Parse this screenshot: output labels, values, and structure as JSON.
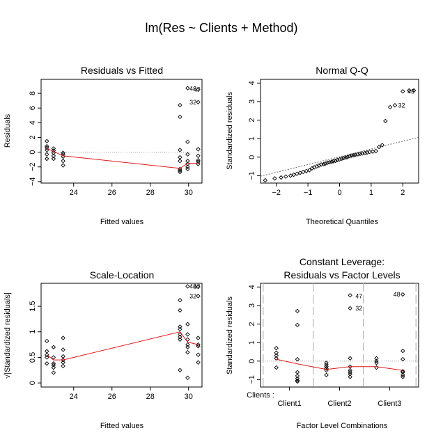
{
  "title": "lm(Res ~ Clients + Method)",
  "chart_data": [
    {
      "type": "scatter",
      "title": "Residuals vs Fitted",
      "xlabel": "Fitted values",
      "ylabel": "Residuals",
      "xlim": [
        22.3,
        30.7
      ],
      "ylim": [
        -4.2,
        9.9
      ],
      "xticks": [
        24,
        26,
        28,
        30
      ],
      "yticks": [
        -4,
        -2,
        0,
        2,
        4,
        6,
        8
      ],
      "reference_y": 0,
      "points": [
        [
          22.6,
          1.5
        ],
        [
          22.6,
          0.8
        ],
        [
          22.6,
          0.6
        ],
        [
          22.6,
          0.3
        ],
        [
          22.6,
          -0.3
        ],
        [
          22.6,
          -0.9
        ],
        [
          22.95,
          0.5
        ],
        [
          22.95,
          0.2
        ],
        [
          22.95,
          -0.1
        ],
        [
          22.95,
          -0.5
        ],
        [
          22.95,
          -0.9
        ],
        [
          23.45,
          -0.1
        ],
        [
          23.45,
          -0.3
        ],
        [
          23.45,
          -0.6
        ],
        [
          23.45,
          -1.2
        ],
        [
          23.45,
          -1.8
        ],
        [
          29.55,
          6.4
        ],
        [
          29.55,
          4.8
        ],
        [
          29.55,
          0.3
        ],
        [
          29.55,
          -0.7
        ],
        [
          29.55,
          -1.2
        ],
        [
          29.55,
          -2.3
        ],
        [
          29.55,
          -2.5
        ],
        [
          29.55,
          -2.7
        ],
        [
          29.95,
          8.7
        ],
        [
          29.95,
          1.4
        ],
        [
          29.95,
          -0.3
        ],
        [
          29.95,
          -1.2
        ],
        [
          29.95,
          -1.6
        ],
        [
          29.95,
          -2.0
        ],
        [
          29.95,
          -2.3
        ],
        [
          30.5,
          8.5
        ],
        [
          30.5,
          6.8
        ],
        [
          30.5,
          0.4
        ],
        [
          30.5,
          -0.5
        ],
        [
          30.5,
          -1.1
        ],
        [
          30.5,
          -1.3
        ],
        [
          30.5,
          -1.6
        ]
      ],
      "smoother": {
        "x": [
          22.6,
          22.95,
          23.45,
          29.55,
          29.95,
          30.5
        ],
        "y": [
          0.5,
          0.1,
          -0.5,
          -2.2,
          -1.5,
          -1.5
        ]
      },
      "point_labels": [
        {
          "text": "48",
          "x": 30.05,
          "y": 8.6
        },
        {
          "text": "47",
          "x": 30.25,
          "y": 8.5
        },
        {
          "text": "32",
          "x": 30.05,
          "y": 6.8
        }
      ]
    },
    {
      "type": "scatter",
      "title": "Normal Q-Q",
      "xlabel": "Theoretical Quantiles",
      "ylabel": "Standardized residuals",
      "xlim": [
        -2.5,
        2.5
      ],
      "ylim": [
        -1.4,
        4.2
      ],
      "xticks": [
        -2,
        -1,
        0,
        1,
        2
      ],
      "yticks": [
        -1,
        0,
        1,
        2,
        3,
        4
      ],
      "reference_line": {
        "intercept": 0.02,
        "slope": 0.42
      },
      "points": [
        [
          -2.35,
          -1.25
        ],
        [
          -2.05,
          -1.15
        ],
        [
          -1.85,
          -1.1
        ],
        [
          -1.7,
          -1.05
        ],
        [
          -1.55,
          -1.0
        ],
        [
          -1.45,
          -0.95
        ],
        [
          -1.35,
          -0.9
        ],
        [
          -1.25,
          -0.85
        ],
        [
          -1.15,
          -0.8
        ],
        [
          -1.05,
          -0.75
        ],
        [
          -0.95,
          -0.7
        ],
        [
          -0.87,
          -0.6
        ],
        [
          -0.8,
          -0.55
        ],
        [
          -0.72,
          -0.5
        ],
        [
          -0.65,
          -0.45
        ],
        [
          -0.58,
          -0.4
        ],
        [
          -0.5,
          -0.38
        ],
        [
          -0.45,
          -0.35
        ],
        [
          -0.38,
          -0.3
        ],
        [
          -0.32,
          -0.28
        ],
        [
          -0.25,
          -0.25
        ],
        [
          -0.2,
          -0.22
        ],
        [
          -0.13,
          -0.2
        ],
        [
          -0.07,
          -0.15
        ],
        [
          0.0,
          -0.12
        ],
        [
          0.07,
          -0.08
        ],
        [
          0.13,
          -0.05
        ],
        [
          0.2,
          -0.02
        ],
        [
          0.25,
          0.0
        ],
        [
          0.32,
          0.05
        ],
        [
          0.38,
          0.08
        ],
        [
          0.45,
          0.1
        ],
        [
          0.5,
          0.12
        ],
        [
          0.58,
          0.15
        ],
        [
          0.65,
          0.18
        ],
        [
          0.72,
          0.2
        ],
        [
          0.8,
          0.22
        ],
        [
          0.87,
          0.25
        ],
        [
          0.95,
          0.28
        ],
        [
          1.05,
          0.3
        ],
        [
          1.15,
          0.33
        ],
        [
          1.25,
          0.55
        ],
        [
          1.35,
          0.65
        ],
        [
          1.45,
          1.95
        ],
        [
          1.6,
          2.7
        ],
        [
          1.75,
          2.8
        ],
        [
          2.0,
          3.55
        ],
        [
          2.2,
          3.6
        ],
        [
          2.35,
          3.6
        ]
      ],
      "point_labels": [
        {
          "text": "48",
          "x": 2.15,
          "y": 3.55
        },
        {
          "text": "32",
          "x": 1.85,
          "y": 2.8
        }
      ]
    },
    {
      "type": "scatter",
      "title": "Scale-Location",
      "xlabel": "Fitted values",
      "ylabel": "√|Standardized residuals|",
      "xlim": [
        22.3,
        30.7
      ],
      "ylim": [
        -0.08,
        1.95
      ],
      "xticks": [
        24,
        26,
        28,
        30
      ],
      "yticks": [
        0.0,
        0.5,
        1.0,
        1.5
      ],
      "points": [
        [
          22.6,
          0.82
        ],
        [
          22.6,
          0.62
        ],
        [
          22.6,
          0.55
        ],
        [
          22.6,
          0.5
        ],
        [
          22.6,
          0.38
        ],
        [
          22.95,
          0.7
        ],
        [
          22.95,
          0.5
        ],
        [
          22.95,
          0.38
        ],
        [
          22.95,
          0.35
        ],
        [
          22.95,
          0.3
        ],
        [
          22.95,
          0.2
        ],
        [
          23.45,
          0.88
        ],
        [
          23.45,
          0.65
        ],
        [
          23.45,
          0.52
        ],
        [
          23.45,
          0.45
        ],
        [
          23.45,
          0.4
        ],
        [
          23.45,
          0.33
        ],
        [
          29.55,
          1.62
        ],
        [
          29.55,
          1.42
        ],
        [
          29.55,
          1.1
        ],
        [
          29.55,
          1.05
        ],
        [
          29.55,
          0.95
        ],
        [
          29.55,
          0.9
        ],
        [
          29.55,
          0.85
        ],
        [
          29.55,
          0.25
        ],
        [
          29.95,
          1.89
        ],
        [
          29.95,
          1.15
        ],
        [
          29.95,
          0.95
        ],
        [
          29.95,
          0.85
        ],
        [
          29.95,
          0.75
        ],
        [
          29.95,
          0.7
        ],
        [
          29.95,
          0.6
        ],
        [
          29.95,
          0.1
        ],
        [
          30.5,
          1.88
        ],
        [
          30.5,
          1.7
        ],
        [
          30.5,
          0.88
        ],
        [
          30.5,
          0.75
        ],
        [
          30.5,
          0.72
        ],
        [
          30.5,
          0.55
        ],
        [
          30.5,
          0.4
        ]
      ],
      "smoother": {
        "x": [
          22.6,
          22.95,
          23.45,
          29.55,
          29.95,
          30.5
        ],
        "y": [
          0.55,
          0.45,
          0.45,
          1.0,
          0.8,
          0.75
        ]
      },
      "point_labels": [
        {
          "text": "48",
          "x": 30.05,
          "y": 1.89
        },
        {
          "text": "47",
          "x": 30.25,
          "y": 1.88
        },
        {
          "text": "32",
          "x": 30.05,
          "y": 1.7
        }
      ]
    },
    {
      "type": "scatter",
      "title": "Constant Leverage:",
      "subtitle": "Residuals vs Factor Levels",
      "xlabel": "Factor Level Combinations",
      "ylabel": "Standardized residuals",
      "xlim": [
        0.0,
        3.0
      ],
      "ylim": [
        -1.4,
        4.2
      ],
      "yticks": [
        -1,
        0,
        1,
        2,
        3,
        4
      ],
      "factor_label": "Clients :",
      "categories": [
        "Client1",
        "Client2",
        "Client3"
      ],
      "category_positions": [
        0.55,
        1.5,
        2.45
      ],
      "separators": [
        0.05,
        1.0,
        1.95,
        2.95
      ],
      "reference_y": 0,
      "points": [
        [
          0.3,
          0.7
        ],
        [
          0.3,
          0.45
        ],
        [
          0.3,
          0.3
        ],
        [
          0.3,
          0.15
        ],
        [
          0.3,
          -0.35
        ],
        [
          0.7,
          2.7
        ],
        [
          0.7,
          1.95
        ],
        [
          0.7,
          0.1
        ],
        [
          0.7,
          -0.6
        ],
        [
          0.7,
          -0.8
        ],
        [
          0.7,
          -0.95
        ],
        [
          0.7,
          -1.05
        ],
        [
          0.7,
          -1.1
        ],
        [
          1.25,
          -0.1
        ],
        [
          1.25,
          -0.2
        ],
        [
          1.25,
          -0.3
        ],
        [
          1.25,
          -0.4
        ],
        [
          1.25,
          -0.5
        ],
        [
          1.25,
          -0.75
        ],
        [
          1.7,
          3.55
        ],
        [
          1.7,
          2.85
        ],
        [
          1.7,
          0.15
        ],
        [
          1.7,
          -0.3
        ],
        [
          1.7,
          -0.5
        ],
        [
          1.7,
          -0.6
        ],
        [
          1.7,
          -0.7
        ],
        [
          1.7,
          -0.85
        ],
        [
          2.2,
          0.15
        ],
        [
          2.2,
          0.0
        ],
        [
          2.2,
          -0.1
        ],
        [
          2.2,
          -0.35
        ],
        [
          2.7,
          3.6
        ],
        [
          2.7,
          0.55
        ],
        [
          2.7,
          0.1
        ],
        [
          2.7,
          -0.55
        ],
        [
          2.7,
          -0.6
        ],
        [
          2.7,
          -0.75
        ],
        [
          2.7,
          -0.85
        ]
      ],
      "smoother": {
        "x": [
          0.3,
          0.7,
          1.25,
          1.7,
          2.2,
          2.7
        ],
        "y": [
          0.1,
          -0.15,
          -0.45,
          -0.3,
          -0.3,
          -0.5
        ]
      },
      "point_labels": [
        {
          "text": "47",
          "x": 1.8,
          "y": 3.5
        },
        {
          "text": "32",
          "x": 1.8,
          "y": 2.85
        },
        {
          "text": "48",
          "x": 2.52,
          "y": 3.6
        }
      ]
    }
  ]
}
